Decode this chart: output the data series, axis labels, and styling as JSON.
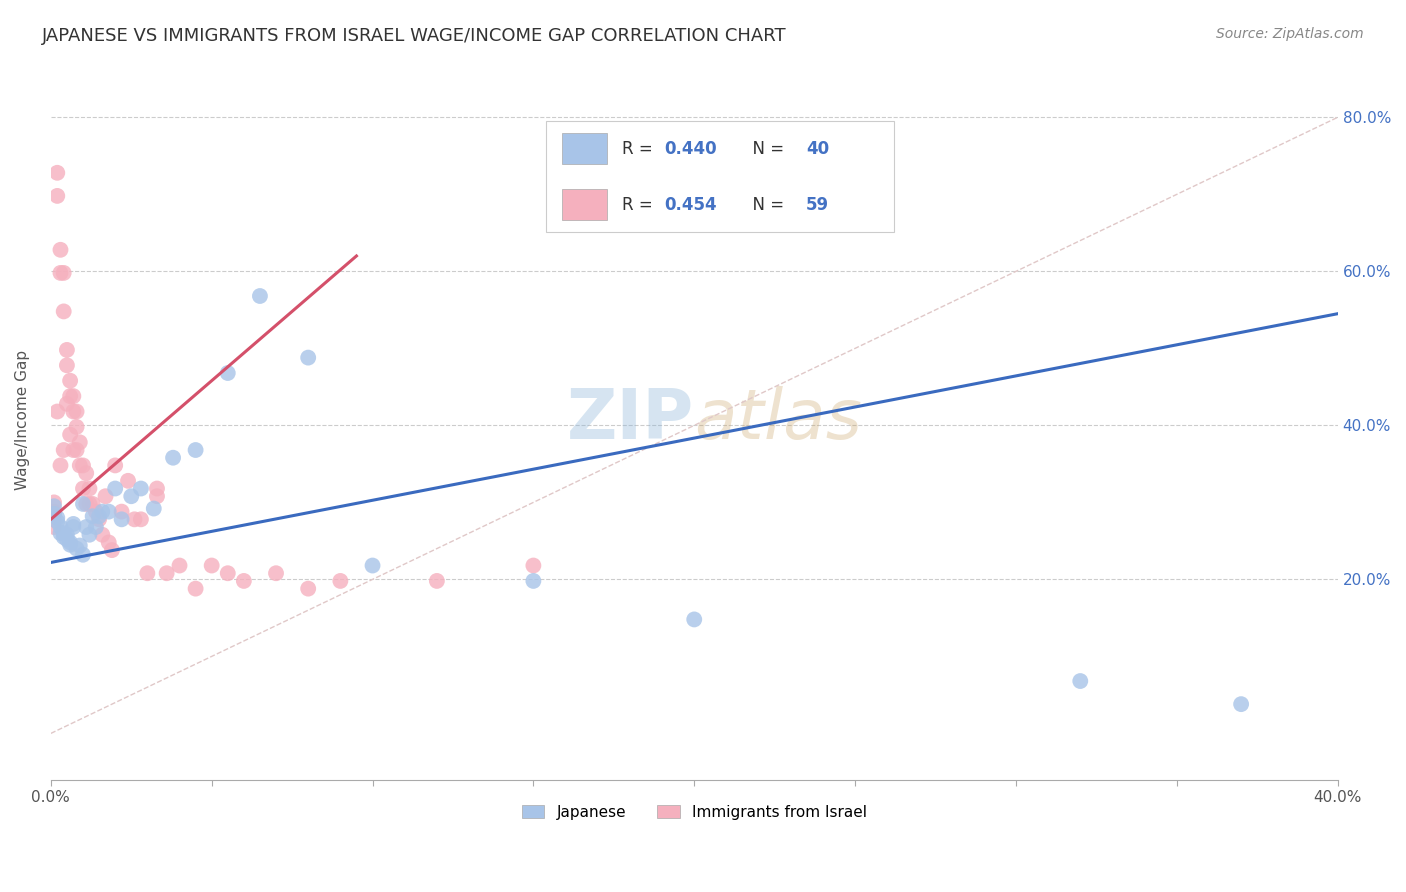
{
  "title": "JAPANESE VS IMMIGRANTS FROM ISRAEL WAGE/INCOME GAP CORRELATION CHART",
  "source": "Source: ZipAtlas.com",
  "ylabel": "Wage/Income Gap",
  "y_ticks": [
    0.2,
    0.4,
    0.6,
    0.8
  ],
  "y_tick_labels": [
    "20.0%",
    "40.0%",
    "60.0%",
    "80.0%"
  ],
  "xlim": [
    0.0,
    0.4
  ],
  "ylim": [
    -0.06,
    0.875
  ],
  "blue_R": 0.44,
  "blue_N": 40,
  "pink_R": 0.454,
  "pink_N": 59,
  "blue_color": "#a8c4e8",
  "pink_color": "#f5b0be",
  "blue_line_color": "#3a6abf",
  "pink_line_color": "#d4506a",
  "diagonal_color": "#e0c8c8",
  "watermark_zip": "ZIP",
  "watermark_atlas": "atlas",
  "legend_label_blue": "Japanese",
  "legend_label_pink": "Immigrants from Israel",
  "blue_scatter_x": [
    0.001,
    0.001,
    0.002,
    0.002,
    0.003,
    0.003,
    0.004,
    0.004,
    0.005,
    0.005,
    0.006,
    0.006,
    0.007,
    0.007,
    0.008,
    0.009,
    0.01,
    0.01,
    0.011,
    0.012,
    0.013,
    0.014,
    0.015,
    0.016,
    0.018,
    0.02,
    0.022,
    0.025,
    0.028,
    0.032,
    0.038,
    0.045,
    0.055,
    0.065,
    0.08,
    0.1,
    0.15,
    0.2,
    0.32,
    0.37
  ],
  "blue_scatter_y": [
    0.295,
    0.285,
    0.28,
    0.275,
    0.268,
    0.26,
    0.26,
    0.255,
    0.258,
    0.252,
    0.248,
    0.245,
    0.268,
    0.272,
    0.24,
    0.244,
    0.232,
    0.298,
    0.268,
    0.258,
    0.282,
    0.268,
    0.282,
    0.288,
    0.288,
    0.318,
    0.278,
    0.308,
    0.318,
    0.292,
    0.358,
    0.368,
    0.468,
    0.568,
    0.488,
    0.218,
    0.198,
    0.148,
    0.068,
    0.038
  ],
  "pink_scatter_x": [
    0.001,
    0.001,
    0.001,
    0.001,
    0.002,
    0.002,
    0.002,
    0.003,
    0.003,
    0.003,
    0.004,
    0.004,
    0.004,
    0.005,
    0.005,
    0.005,
    0.006,
    0.006,
    0.006,
    0.007,
    0.007,
    0.007,
    0.008,
    0.008,
    0.008,
    0.009,
    0.009,
    0.01,
    0.01,
    0.011,
    0.011,
    0.012,
    0.012,
    0.013,
    0.014,
    0.015,
    0.016,
    0.017,
    0.018,
    0.019,
    0.02,
    0.022,
    0.024,
    0.026,
    0.028,
    0.03,
    0.033,
    0.033,
    0.036,
    0.04,
    0.045,
    0.05,
    0.055,
    0.06,
    0.07,
    0.08,
    0.09,
    0.12,
    0.15
  ],
  "pink_scatter_y": [
    0.3,
    0.288,
    0.278,
    0.268,
    0.728,
    0.698,
    0.418,
    0.628,
    0.598,
    0.348,
    0.598,
    0.548,
    0.368,
    0.498,
    0.478,
    0.428,
    0.458,
    0.438,
    0.388,
    0.438,
    0.418,
    0.368,
    0.418,
    0.398,
    0.368,
    0.378,
    0.348,
    0.348,
    0.318,
    0.338,
    0.298,
    0.318,
    0.298,
    0.298,
    0.288,
    0.278,
    0.258,
    0.308,
    0.248,
    0.238,
    0.348,
    0.288,
    0.328,
    0.278,
    0.278,
    0.208,
    0.318,
    0.308,
    0.208,
    0.218,
    0.188,
    0.218,
    0.208,
    0.198,
    0.208,
    0.188,
    0.198,
    0.198,
    0.218
  ],
  "blue_line_x": [
    0.0,
    0.4
  ],
  "blue_line_y": [
    0.222,
    0.545
  ],
  "pink_line_x": [
    0.0,
    0.095
  ],
  "pink_line_y": [
    0.278,
    0.62
  ],
  "grid_color": "#cccccc",
  "background_color": "#ffffff",
  "title_color": "#333333",
  "axis_label_color": "#4472c4",
  "title_fontsize": 13,
  "source_fontsize": 10,
  "watermark_fontsize": 50
}
